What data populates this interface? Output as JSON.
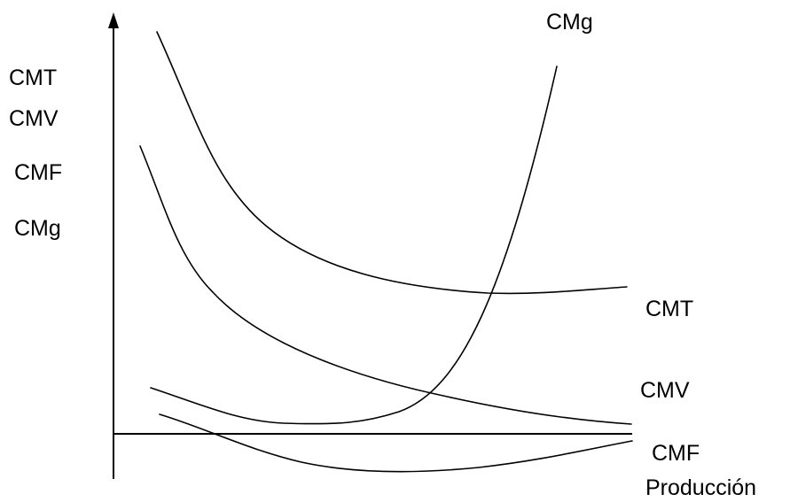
{
  "y_axis_labels": {
    "cmt": "CMT",
    "cmv": "CMV",
    "cmf": "CMF",
    "cmg": "CMg"
  },
  "curve_labels": {
    "cmg": "CMg",
    "cmt": "CMT",
    "cmv": "CMV",
    "cmf": "CMF"
  },
  "x_axis_label": "Producción",
  "colors": {
    "stroke": "#000000",
    "background": "#ffffff"
  }
}
